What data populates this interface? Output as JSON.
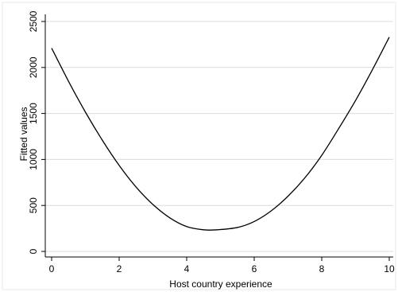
{
  "chart_data": {
    "type": "line",
    "title": "",
    "xlabel": "Host country experience",
    "ylabel": "Fitted values",
    "xlim": [
      0,
      10
    ],
    "ylim": [
      0,
      2500
    ],
    "xticks": [
      0,
      2,
      4,
      6,
      8,
      10
    ],
    "yticks": [
      0,
      500,
      1000,
      1500,
      2000,
      2500
    ],
    "grid": true,
    "legend": "none",
    "series": [
      {
        "x": [
          0,
          0.5,
          1,
          1.5,
          2,
          2.5,
          3,
          3.5,
          4,
          4.5,
          4.9,
          5.5,
          6,
          6.5,
          7,
          7.5,
          8,
          8.5,
          9,
          9.5,
          10
        ],
        "y": [
          2210,
          1850,
          1515,
          1210,
          935,
          700,
          510,
          365,
          270,
          235,
          235,
          260,
          325,
          440,
          600,
          800,
          1045,
          1335,
          1640,
          1975,
          2330
        ],
        "color": "#000000"
      }
    ]
  }
}
